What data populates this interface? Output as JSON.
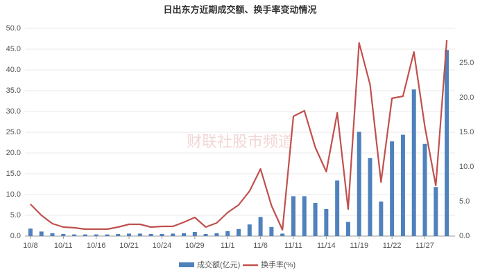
{
  "chart_data": {
    "type": "bar-line",
    "title": "日出东方近期成交额、换手率变动情况",
    "watermark": "财联社股市频道",
    "categories": [
      "10/8",
      null,
      null,
      "10/11",
      null,
      null,
      "10/16",
      null,
      null,
      "10/21",
      null,
      null,
      "10/24",
      null,
      null,
      "10/29",
      null,
      null,
      "11/1",
      null,
      null,
      "11/6",
      null,
      null,
      "11/11",
      null,
      null,
      "11/14",
      null,
      null,
      "11/19",
      null,
      null,
      "11/22",
      null,
      null,
      "11/27",
      null,
      null
    ],
    "series": [
      {
        "name": "成交额(亿元)",
        "type": "bar",
        "color": "#4f81bd",
        "values": [
          1.8,
          1.1,
          0.7,
          0.5,
          0.4,
          0.4,
          0.4,
          0.4,
          0.5,
          0.6,
          0.6,
          0.5,
          0.5,
          0.6,
          0.7,
          1.0,
          0.5,
          0.7,
          1.2,
          1.7,
          2.8,
          4.6,
          2.2,
          0.6,
          9.6,
          9.6,
          8.0,
          6.5,
          13.4,
          3.4,
          25.1,
          18.8,
          8.3,
          22.8,
          24.4,
          35.3,
          22.2,
          11.8,
          44.8
        ]
      },
      {
        "name": "换手率(%)",
        "type": "line",
        "axis": "y2",
        "color": "#c0504d",
        "values": [
          4.6,
          3.0,
          1.8,
          1.3,
          1.2,
          1.0,
          1.0,
          1.0,
          1.3,
          1.7,
          1.7,
          1.3,
          1.4,
          1.4,
          2.0,
          2.7,
          1.3,
          1.9,
          3.4,
          4.5,
          6.5,
          9.7,
          4.4,
          0.9,
          17.3,
          18.1,
          12.8,
          9.3,
          17.8,
          3.9,
          27.9,
          21.9,
          7.8,
          19.9,
          20.2,
          26.6,
          15.8,
          7.3,
          28.3
        ]
      }
    ],
    "ylim": [
      0,
      50
    ],
    "yticks": [
      {
        "value": 0,
        "label": "0.0"
      },
      {
        "value": 5,
        "label": "5.0"
      },
      {
        "value": 10,
        "label": "10.0"
      },
      {
        "value": 15,
        "label": "15.0"
      },
      {
        "value": 20,
        "label": "20.0"
      },
      {
        "value": 25,
        "label": "25.0"
      },
      {
        "value": 30,
        "label": "30.0"
      },
      {
        "value": 35,
        "label": "35.0"
      },
      {
        "value": 40,
        "label": "40.0"
      },
      {
        "value": 45,
        "label": "45.0"
      },
      {
        "value": 50,
        "label": "50.0"
      }
    ],
    "y2lim": [
      0,
      30
    ],
    "y2ticks": [
      {
        "value": 0,
        "label": "0.0"
      },
      {
        "value": 5,
        "label": "5.0"
      },
      {
        "value": 10,
        "label": "10.0"
      },
      {
        "value": 15,
        "label": "15.0"
      },
      {
        "value": 20,
        "label": "20.0"
      },
      {
        "value": 25,
        "label": "25.0"
      }
    ],
    "grid": true,
    "legend": "bottom"
  }
}
